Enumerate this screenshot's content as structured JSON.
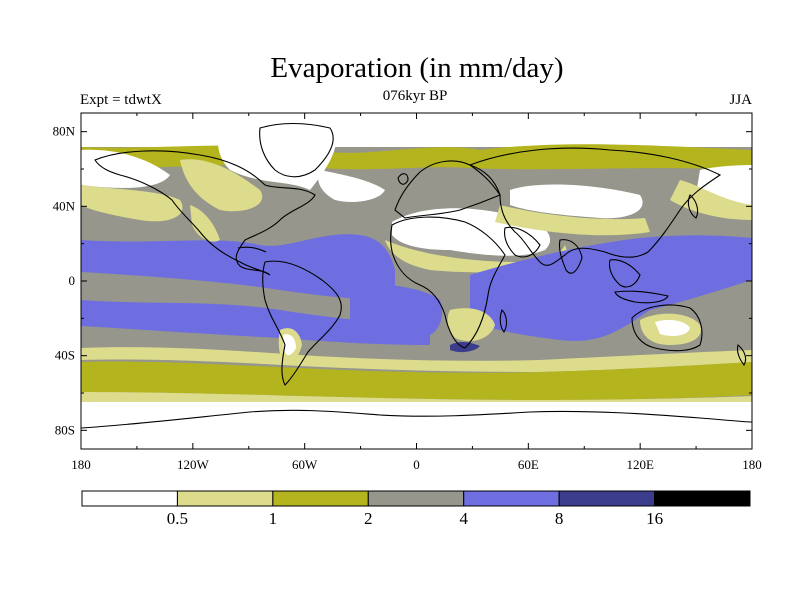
{
  "title": "Evaporation (in mm/day)",
  "experiment_label": "Expt = tdwtX",
  "period_label": "076kyr BP",
  "season_label": "JJA",
  "lat_ticks": [
    {
      "label": "80N",
      "lat": 80
    },
    {
      "label": "40N",
      "lat": 40
    },
    {
      "label": "0",
      "lat": 0
    },
    {
      "label": "40S",
      "lat": -40
    },
    {
      "label": "80S",
      "lat": -80
    }
  ],
  "lon_ticks": [
    {
      "label": "180",
      "lon": -180
    },
    {
      "label": "120W",
      "lon": -120
    },
    {
      "label": "60W",
      "lon": -60
    },
    {
      "label": "0",
      "lon": 0
    },
    {
      "label": "60E",
      "lon": 60
    },
    {
      "label": "120E",
      "lon": 120
    },
    {
      "label": "180",
      "lon": 180
    }
  ],
  "colorbar": {
    "colors": [
      "#ffffff",
      "#dcdc8c",
      "#b4b41e",
      "#96968c",
      "#6e6ee1",
      "#3c3c8c",
      "#000000"
    ],
    "labels": [
      "0.5",
      "1",
      "2",
      "4",
      "8",
      "16"
    ]
  },
  "colors": {
    "lt05": "#ffffff",
    "c05_1": "#dcdc8c",
    "c1_2": "#b4b41e",
    "c2_4": "#96968c",
    "c4_8": "#6e6ee1",
    "c8_16": "#3c3c8c"
  }
}
